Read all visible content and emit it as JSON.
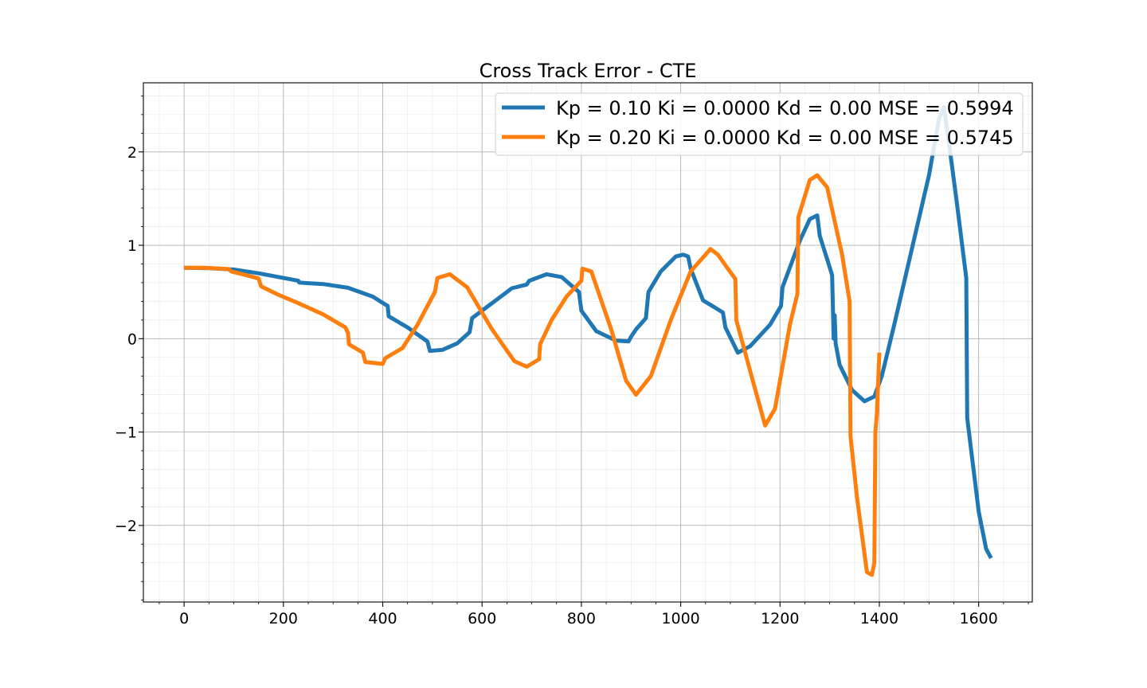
{
  "chart_data": {
    "type": "line",
    "title": "Cross Track Error - CTE",
    "xlabel": "",
    "ylabel": "",
    "xlim": [
      -82,
      1708
    ],
    "ylim": [
      -2.82,
      2.74
    ],
    "x_ticks": [
      0,
      200,
      400,
      600,
      800,
      1000,
      1200,
      1400,
      1600
    ],
    "y_ticks": [
      -2,
      -1,
      0,
      1,
      2
    ],
    "y_tick_labels": [
      "−2",
      "−1",
      "0",
      "1",
      "2"
    ],
    "grid": true,
    "minor_grid": true,
    "legend_position": "top-right",
    "series": [
      {
        "name": "Kp = 0.10 Ki = 0.0000 Kd = 0.00 MSE = 0.5994",
        "color": "#1f77b4",
        "points": [
          [
            0,
            0.76
          ],
          [
            50,
            0.755
          ],
          [
            100,
            0.74
          ],
          [
            150,
            0.7
          ],
          [
            200,
            0.65
          ],
          [
            230,
            0.62
          ],
          [
            232,
            0.6
          ],
          [
            280,
            0.585
          ],
          [
            330,
            0.545
          ],
          [
            380,
            0.45
          ],
          [
            410,
            0.35
          ],
          [
            412,
            0.24
          ],
          [
            450,
            0.12
          ],
          [
            490,
            -0.03
          ],
          [
            495,
            -0.13
          ],
          [
            520,
            -0.12
          ],
          [
            550,
            -0.05
          ],
          [
            575,
            0.07
          ],
          [
            580,
            0.22
          ],
          [
            620,
            0.38
          ],
          [
            660,
            0.54
          ],
          [
            690,
            0.58
          ],
          [
            695,
            0.62
          ],
          [
            730,
            0.69
          ],
          [
            760,
            0.66
          ],
          [
            795,
            0.5
          ],
          [
            800,
            0.3
          ],
          [
            830,
            0.08
          ],
          [
            870,
            -0.02
          ],
          [
            895,
            -0.03
          ],
          [
            900,
            0.02
          ],
          [
            910,
            0.1
          ],
          [
            930,
            0.22
          ],
          [
            935,
            0.5
          ],
          [
            960,
            0.72
          ],
          [
            990,
            0.88
          ],
          [
            1005,
            0.9
          ],
          [
            1015,
            0.88
          ],
          [
            1020,
            0.75
          ],
          [
            1045,
            0.41
          ],
          [
            1070,
            0.33
          ],
          [
            1085,
            0.28
          ],
          [
            1090,
            0.12
          ],
          [
            1115,
            -0.15
          ],
          [
            1140,
            -0.08
          ],
          [
            1180,
            0.15
          ],
          [
            1202,
            0.35
          ],
          [
            1205,
            0.55
          ],
          [
            1240,
            1.05
          ],
          [
            1260,
            1.28
          ],
          [
            1275,
            1.32
          ],
          [
            1280,
            1.1
          ],
          [
            1295,
            0.85
          ],
          [
            1305,
            0.68
          ],
          [
            1308,
            0.0
          ],
          [
            1310,
            0.25
          ],
          [
            1312,
            -0.05
          ],
          [
            1320,
            -0.28
          ],
          [
            1345,
            -0.55
          ],
          [
            1370,
            -0.67
          ],
          [
            1390,
            -0.62
          ],
          [
            1405,
            -0.4
          ],
          [
            1430,
            0.15
          ],
          [
            1465,
            0.95
          ],
          [
            1500,
            1.75
          ],
          [
            1520,
            2.35
          ],
          [
            1530,
            2.48
          ],
          [
            1540,
            2.1
          ],
          [
            1555,
            1.5
          ],
          [
            1568,
            0.95
          ],
          [
            1575,
            0.65
          ],
          [
            1577,
            -0.85
          ],
          [
            1585,
            -1.2
          ],
          [
            1600,
            -1.85
          ],
          [
            1615,
            -2.25
          ],
          [
            1625,
            -2.35
          ]
        ]
      },
      {
        "name": "Kp = 0.20 Ki = 0.0000 Kd = 0.00 MSE = 0.5745",
        "color": "#ff7f0e",
        "points": [
          [
            0,
            0.76
          ],
          [
            40,
            0.76
          ],
          [
            90,
            0.745
          ],
          [
            95,
            0.72
          ],
          [
            125,
            0.68
          ],
          [
            150,
            0.645
          ],
          [
            155,
            0.56
          ],
          [
            190,
            0.47
          ],
          [
            230,
            0.38
          ],
          [
            280,
            0.26
          ],
          [
            325,
            0.12
          ],
          [
            330,
            0.06
          ],
          [
            332,
            -0.06
          ],
          [
            360,
            -0.15
          ],
          [
            365,
            -0.25
          ],
          [
            400,
            -0.27
          ],
          [
            405,
            -0.21
          ],
          [
            440,
            -0.1
          ],
          [
            470,
            0.15
          ],
          [
            505,
            0.5
          ],
          [
            510,
            0.65
          ],
          [
            535,
            0.69
          ],
          [
            570,
            0.55
          ],
          [
            620,
            0.1
          ],
          [
            665,
            -0.24
          ],
          [
            690,
            -0.3
          ],
          [
            715,
            -0.22
          ],
          [
            717,
            -0.06
          ],
          [
            740,
            0.2
          ],
          [
            770,
            0.45
          ],
          [
            800,
            0.62
          ],
          [
            802,
            0.75
          ],
          [
            820,
            0.72
          ],
          [
            860,
            0.1
          ],
          [
            890,
            -0.45
          ],
          [
            910,
            -0.6
          ],
          [
            940,
            -0.4
          ],
          [
            980,
            0.2
          ],
          [
            1020,
            0.72
          ],
          [
            1060,
            0.96
          ],
          [
            1075,
            0.9
          ],
          [
            1095,
            0.75
          ],
          [
            1110,
            0.64
          ],
          [
            1112,
            0.2
          ],
          [
            1140,
            -0.35
          ],
          [
            1170,
            -0.93
          ],
          [
            1190,
            -0.75
          ],
          [
            1220,
            0.15
          ],
          [
            1235,
            0.48
          ],
          [
            1237,
            1.3
          ],
          [
            1260,
            1.7
          ],
          [
            1275,
            1.75
          ],
          [
            1295,
            1.62
          ],
          [
            1325,
            0.9
          ],
          [
            1340,
            0.4
          ],
          [
            1342,
            -1.05
          ],
          [
            1355,
            -1.7
          ],
          [
            1375,
            -2.5
          ],
          [
            1385,
            -2.53
          ],
          [
            1390,
            -2.4
          ],
          [
            1392,
            -1.0
          ],
          [
            1395,
            -0.8
          ],
          [
            1400,
            -0.15
          ]
        ]
      }
    ]
  }
}
